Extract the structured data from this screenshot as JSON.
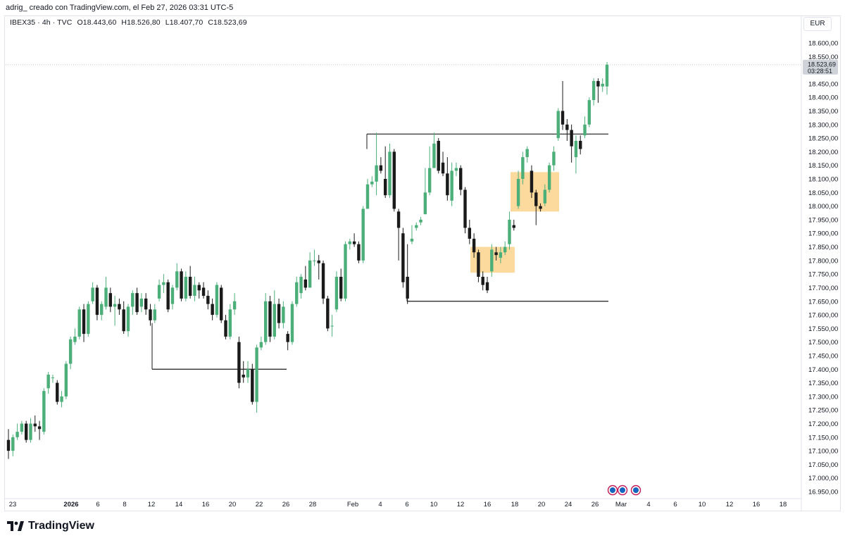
{
  "header": {
    "author_line": "adrig_ creado con TradingView.com, el Feb 27, 2026 03:31 UTC-5"
  },
  "symbol": {
    "name": "IBEX35 · 4h · TVC",
    "open": "O18.443,60",
    "high": "H18.526,80",
    "low": "L18.407,70",
    "close": "C18.523,69"
  },
  "currency": "EUR",
  "price_tag": {
    "value": "18.523,69",
    "countdown": "03:28:51"
  },
  "brand": {
    "name": "TradingView"
  },
  "colors": {
    "up": "#4caf7a",
    "down": "#1a1a1a",
    "zone": "#fbd38d",
    "line": "#1a1a1a",
    "tag": "#cfd2d9"
  },
  "chart_data": {
    "type": "candlestick",
    "y_range": [
      16930,
      18640
    ],
    "y_ticks": [
      "18.600,00",
      "18.550,00",
      "18.500,00",
      "18.450,00",
      "18.400,00",
      "18.350,00",
      "18.300,00",
      "18.250,00",
      "18.200,00",
      "18.150,00",
      "18.100,00",
      "18.050,00",
      "18.000,00",
      "17.950,00",
      "17.900,00",
      "17.850,00",
      "17.800,00",
      "17.750,00",
      "17.700,00",
      "17.650,00",
      "17.600,00",
      "17.550,00",
      "17.500,00",
      "17.450,00",
      "17.400,00",
      "17.350,00",
      "17.300,00",
      "17.250,00",
      "17.200,00",
      "17.150,00",
      "17.100,00",
      "17.050,00",
      "17.000,00",
      "16.950,00"
    ],
    "x_ticks": [
      "23",
      "2026",
      "6",
      "8",
      "12",
      "14",
      "16",
      "20",
      "22",
      "26",
      "28",
      "Feb",
      "4",
      "6",
      "10",
      "12",
      "16",
      "18",
      "20",
      "24",
      "26",
      "Mar",
      "4",
      "6",
      "10",
      "12",
      "16",
      "18"
    ],
    "horizontal_levels": [
      {
        "name": "resistance",
        "price": 18265
      },
      {
        "name": "support-feb",
        "price": 17650
      },
      {
        "name": "support-jan",
        "price": 17400
      }
    ],
    "zones": [
      {
        "name": "zone-upper",
        "top": 18125,
        "bottom": 17980
      },
      {
        "name": "zone-lower",
        "top": 17850,
        "bottom": 17755
      }
    ],
    "candles": [
      [
        17140,
        17100,
        17180,
        17070
      ],
      [
        17100,
        17150,
        17160,
        17080
      ],
      [
        17150,
        17170,
        17200,
        17140
      ],
      [
        17170,
        17200,
        17210,
        17160
      ],
      [
        17200,
        17140,
        17210,
        17130
      ],
      [
        17140,
        17200,
        17220,
        17130
      ],
      [
        17200,
        17190,
        17230,
        17170
      ],
      [
        17190,
        17180,
        17210,
        17140
      ],
      [
        17170,
        17320,
        17330,
        17160
      ],
      [
        17330,
        17380,
        17390,
        17310
      ],
      [
        17370,
        17370,
        17380,
        17350
      ],
      [
        17350,
        17280,
        17360,
        17270
      ],
      [
        17280,
        17300,
        17320,
        17260
      ],
      [
        17300,
        17420,
        17430,
        17290
      ],
      [
        17420,
        17510,
        17520,
        17400
      ],
      [
        17500,
        17520,
        17550,
        17490
      ],
      [
        17520,
        17620,
        17630,
        17510
      ],
      [
        17620,
        17530,
        17640,
        17500
      ],
      [
        17530,
        17640,
        17650,
        17520
      ],
      [
        17650,
        17700,
        17720,
        17640
      ],
      [
        17700,
        17600,
        17710,
        17580
      ],
      [
        17600,
        17640,
        17650,
        17580
      ],
      [
        17630,
        17700,
        17740,
        17620
      ],
      [
        17680,
        17630,
        17700,
        17610
      ],
      [
        17630,
        17640,
        17670,
        17560
      ],
      [
        17640,
        17620,
        17660,
        17600
      ],
      [
        17620,
        17540,
        17650,
        17530
      ],
      [
        17540,
        17630,
        17640,
        17520
      ],
      [
        17630,
        17680,
        17690,
        17600
      ],
      [
        17680,
        17610,
        17700,
        17600
      ],
      [
        17630,
        17660,
        17680,
        17610
      ],
      [
        17660,
        17620,
        17680,
        17600
      ],
      [
        17620,
        17580,
        17640,
        17560
      ],
      [
        17580,
        17620,
        17640,
        17570
      ],
      [
        17660,
        17710,
        17730,
        17650
      ],
      [
        17710,
        17720,
        17750,
        17680
      ],
      [
        17720,
        17620,
        17730,
        17610
      ],
      [
        17640,
        17700,
        17710,
        17620
      ],
      [
        17700,
        17760,
        17790,
        17690
      ],
      [
        17760,
        17660,
        17770,
        17650
      ],
      [
        17660,
        17740,
        17760,
        17650
      ],
      [
        17740,
        17670,
        17780,
        17660
      ],
      [
        17670,
        17710,
        17740,
        17650
      ],
      [
        17710,
        17690,
        17720,
        17660
      ],
      [
        17700,
        17670,
        17720,
        17660
      ],
      [
        17670,
        17640,
        17690,
        17620
      ],
      [
        17640,
        17600,
        17660,
        17580
      ],
      [
        17600,
        17710,
        17720,
        17590
      ],
      [
        17700,
        17580,
        17710,
        17570
      ],
      [
        17580,
        17520,
        17600,
        17510
      ],
      [
        17520,
        17620,
        17640,
        17510
      ],
      [
        17620,
        17650,
        17680,
        17600
      ],
      [
        17500,
        17350,
        17520,
        17330
      ],
      [
        17380,
        17370,
        17430,
        17350
      ],
      [
        17370,
        17400,
        17430,
        17350
      ],
      [
        17400,
        17280,
        17420,
        17270
      ],
      [
        17280,
        17480,
        17490,
        17240
      ],
      [
        17480,
        17500,
        17520,
        17470
      ],
      [
        17500,
        17650,
        17680,
        17490
      ],
      [
        17650,
        17520,
        17670,
        17500
      ],
      [
        17520,
        17640,
        17690,
        17510
      ],
      [
        17640,
        17570,
        17660,
        17550
      ],
      [
        17570,
        17630,
        17650,
        17550
      ],
      [
        17530,
        17500,
        17540,
        17470
      ],
      [
        17500,
        17640,
        17650,
        17490
      ],
      [
        17640,
        17720,
        17740,
        17630
      ],
      [
        17680,
        17740,
        17750,
        17660
      ],
      [
        17730,
        17700,
        17780,
        17690
      ],
      [
        17700,
        17800,
        17830,
        17700
      ],
      [
        17800,
        17800,
        17840,
        17780
      ],
      [
        17800,
        17790,
        17820,
        17730
      ],
      [
        17790,
        17660,
        17800,
        17640
      ],
      [
        17660,
        17550,
        17670,
        17540
      ],
      [
        17560,
        17560,
        17600,
        17520
      ],
      [
        17620,
        17740,
        17760,
        17610
      ],
      [
        17740,
        17660,
        17770,
        17650
      ],
      [
        17660,
        17860,
        17870,
        17650
      ],
      [
        17860,
        17870,
        17880,
        17840
      ],
      [
        17870,
        17860,
        17900,
        17850
      ],
      [
        17860,
        17800,
        17870,
        17790
      ],
      [
        17800,
        17990,
        18000,
        17790
      ],
      [
        17990,
        18080,
        18100,
        18000
      ],
      [
        18080,
        18090,
        18110,
        18070
      ],
      [
        18090,
        18150,
        18270,
        18040
      ],
      [
        18150,
        18130,
        18180,
        18120
      ],
      [
        18100,
        18040,
        18220,
        18030
      ],
      [
        18040,
        18200,
        18230,
        18030
      ],
      [
        18200,
        17990,
        18210,
        17980
      ],
      [
        17980,
        17920,
        17990,
        17800
      ],
      [
        17900,
        17720,
        17920,
        17700
      ],
      [
        17740,
        17660,
        17860,
        17640
      ],
      [
        17870,
        17880,
        17930,
        17860
      ],
      [
        17920,
        17930,
        17940,
        17910
      ],
      [
        17940,
        17950,
        17960,
        17930
      ],
      [
        17970,
        18050,
        18140,
        17970
      ],
      [
        18050,
        18140,
        18220,
        18040
      ],
      [
        18140,
        18230,
        18270,
        18140
      ],
      [
        18240,
        18130,
        18250,
        18120
      ],
      [
        18160,
        18120,
        18200,
        18110
      ],
      [
        18120,
        18040,
        18180,
        18020
      ],
      [
        18020,
        18130,
        18160,
        18000
      ],
      [
        18130,
        18140,
        18160,
        18110
      ],
      [
        18140,
        18060,
        18150,
        18040
      ],
      [
        18060,
        17920,
        18070,
        17900
      ],
      [
        17920,
        17880,
        17950,
        17860
      ],
      [
        17880,
        17830,
        17900,
        17810
      ],
      [
        17830,
        17740,
        17840,
        17720
      ],
      [
        17740,
        17710,
        17760,
        17690
      ],
      [
        17720,
        17690,
        17740,
        17680
      ],
      [
        17760,
        17840,
        17860,
        17740
      ],
      [
        17830,
        17820,
        17850,
        17800
      ],
      [
        17810,
        17830,
        17850,
        17790
      ],
      [
        17830,
        17850,
        17870,
        17820
      ],
      [
        17860,
        17950,
        17980,
        17840
      ],
      [
        17930,
        17920,
        17950,
        17910
      ],
      [
        18000,
        18100,
        18130,
        17990
      ],
      [
        18100,
        18180,
        18200,
        18080
      ],
      [
        18180,
        18210,
        18220,
        18160
      ],
      [
        18130,
        18050,
        18150,
        18030
      ],
      [
        18050,
        18000,
        18060,
        17930
      ],
      [
        18000,
        17990,
        18010,
        17980
      ],
      [
        18010,
        18060,
        18080,
        18000
      ],
      [
        18060,
        18150,
        18160,
        18050
      ],
      [
        18150,
        18200,
        18220,
        18130
      ],
      [
        18250,
        18350,
        18360,
        18240
      ],
      [
        18350,
        18300,
        18460,
        18280
      ],
      [
        18300,
        18280,
        18320,
        18240
      ],
      [
        18280,
        18220,
        18300,
        18160
      ],
      [
        18180,
        18240,
        18260,
        18120
      ],
      [
        18240,
        18210,
        18260,
        18190
      ],
      [
        18260,
        18300,
        18330,
        18250
      ],
      [
        18300,
        18390,
        18400,
        18290
      ],
      [
        18390,
        18460,
        18470,
        18370
      ],
      [
        18460,
        18440,
        18470,
        18380
      ],
      [
        18440,
        18450,
        18470,
        18420
      ],
      [
        18440,
        18520,
        18530,
        18410
      ]
    ]
  }
}
